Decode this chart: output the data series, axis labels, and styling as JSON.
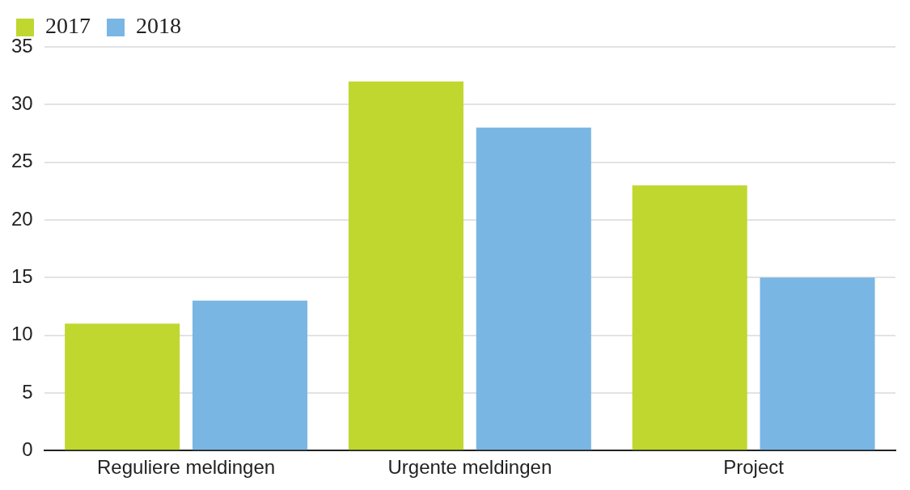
{
  "chart_data": {
    "type": "bar",
    "categories": [
      "Reguliere meldingen",
      "Urgente meldingen",
      "Project"
    ],
    "series": [
      {
        "name": "2017",
        "color": "#c0d72f",
        "values": [
          11,
          32,
          23
        ]
      },
      {
        "name": "2018",
        "color": "#7ab6e4",
        "values": [
          13,
          28,
          15
        ]
      }
    ],
    "ylim": [
      0,
      35
    ],
    "yticks": [
      0,
      5,
      10,
      15,
      20,
      25,
      30,
      35
    ],
    "grid": "y",
    "legend": "top left"
  }
}
